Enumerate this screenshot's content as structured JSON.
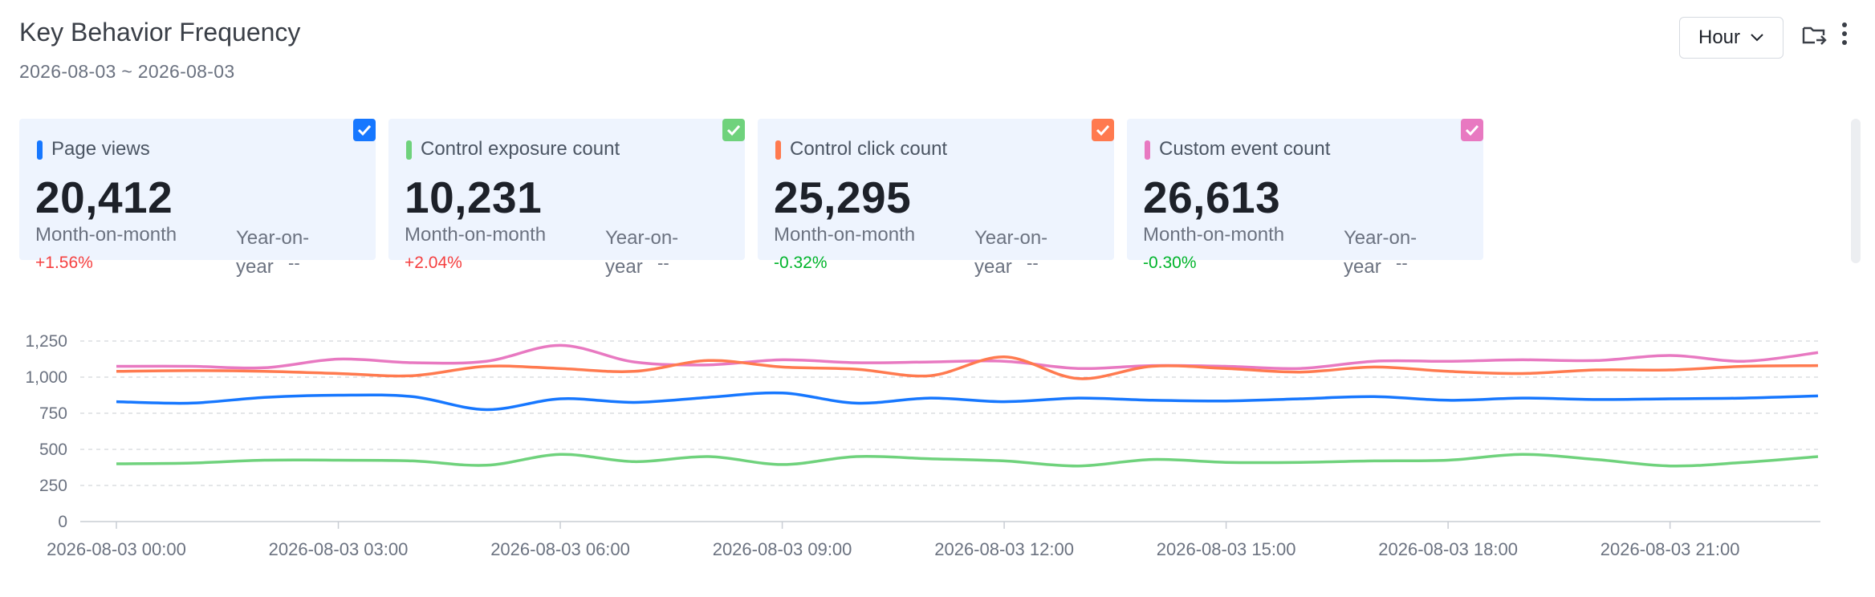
{
  "header": {
    "title": "Key Behavior Frequency",
    "date_range": "2026-08-03 ~ 2026-08-03",
    "granularity": "Hour"
  },
  "icons": {
    "export": "folder-export-icon",
    "more": "more-vertical-icon",
    "dropdown": "chevron-down-icon",
    "check": "checkmark-icon"
  },
  "cards": [
    {
      "label": "Page views",
      "value": "20,412",
      "mom_label": "Month-on-month",
      "mom_value": "+1.56%",
      "mom_trend": "up",
      "yoy_label": "Year-on-year",
      "yoy_value": "--",
      "color": "#1677ff"
    },
    {
      "label": "Control exposure count",
      "value": "10,231",
      "mom_label": "Month-on-month",
      "mom_value": "+2.04%",
      "mom_trend": "up",
      "yoy_label": "Year-on-year",
      "yoy_value": "--",
      "color": "#6fd27c"
    },
    {
      "label": "Control click count",
      "value": "25,295",
      "mom_label": "Month-on-month",
      "mom_value": "-0.32%",
      "mom_trend": "down",
      "yoy_label": "Year-on-year",
      "yoy_value": "--",
      "color": "#ff7a4f"
    },
    {
      "label": "Custom event count",
      "value": "26,613",
      "mom_label": "Month-on-month",
      "mom_value": "-0.30%",
      "mom_trend": "down",
      "yoy_label": "Year-on-year",
      "yoy_value": "--",
      "color": "#e879c1"
    }
  ],
  "chart_data": {
    "type": "line",
    "ylim": [
      0,
      1250
    ],
    "y_ticks": [
      "0",
      "250",
      "500",
      "750",
      "1,000",
      "1,250"
    ],
    "y_tick_values": [
      0,
      250,
      500,
      750,
      1000,
      1250
    ],
    "grid": true,
    "x_labels": [
      "2026-08-03 00:00",
      "2026-08-03 03:00",
      "2026-08-03 06:00",
      "2026-08-03 09:00",
      "2026-08-03 12:00",
      "2026-08-03 15:00",
      "2026-08-03 18:00",
      "2026-08-03 21:00"
    ],
    "x_hours": [
      0,
      23
    ],
    "x": [
      "00:00",
      "01:00",
      "02:00",
      "03:00",
      "04:00",
      "05:00",
      "06:00",
      "07:00",
      "08:00",
      "09:00",
      "10:00",
      "11:00",
      "12:00",
      "13:00",
      "14:00",
      "15:00",
      "16:00",
      "17:00",
      "18:00",
      "19:00",
      "20:00",
      "21:00",
      "22:00",
      "23:00"
    ],
    "series": [
      {
        "color": "#e879c1",
        "values": [
          1075,
          1075,
          1065,
          1125,
          1100,
          1110,
          1220,
          1105,
          1085,
          1120,
          1100,
          1105,
          1110,
          1060,
          1080,
          1075,
          1060,
          1110,
          1110,
          1120,
          1115,
          1150,
          1110,
          1170
        ]
      },
      {
        "color": "#ff7a4f",
        "values": [
          1040,
          1045,
          1040,
          1025,
          1010,
          1075,
          1060,
          1040,
          1115,
          1070,
          1055,
          1010,
          1140,
          990,
          1075,
          1060,
          1035,
          1070,
          1040,
          1025,
          1050,
          1050,
          1075,
          1080
        ]
      },
      {
        "color": "#1677ff",
        "values": [
          830,
          820,
          860,
          875,
          865,
          775,
          850,
          825,
          860,
          890,
          820,
          855,
          830,
          855,
          840,
          835,
          850,
          865,
          840,
          855,
          845,
          850,
          855,
          870
        ]
      },
      {
        "color": "#6fd27c",
        "values": [
          400,
          405,
          425,
          425,
          420,
          390,
          465,
          415,
          450,
          395,
          450,
          435,
          420,
          385,
          430,
          410,
          410,
          420,
          425,
          465,
          430,
          385,
          410,
          450
        ]
      }
    ]
  }
}
